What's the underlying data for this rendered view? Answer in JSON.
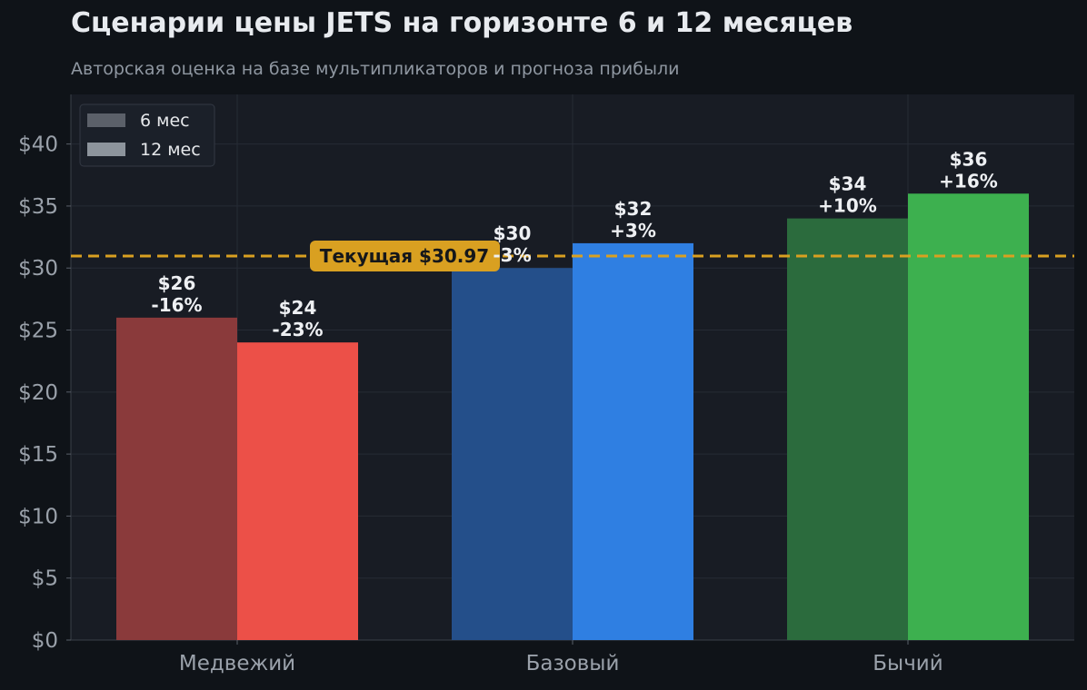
{
  "title": "Сценарии цены JETS на горизонте 6 и 12 месяцев",
  "subtitle": "Авторская оценка на базе мультипликаторов и прогноза прибыли",
  "chart_data": {
    "type": "bar",
    "categories": [
      "Медвежий",
      "Базовый",
      "Бычий"
    ],
    "series": [
      {
        "name": "6 мес",
        "values": [
          26,
          30,
          34
        ],
        "labels": [
          "$26",
          "$30",
          "$34"
        ],
        "changes": [
          "-16%",
          "-3%",
          "+10%"
        ],
        "colors": [
          "#8a3a3b",
          "#244f8a",
          "#2b6b3d"
        ]
      },
      {
        "name": "12 мес",
        "values": [
          24,
          32,
          36
        ],
        "labels": [
          "$24",
          "$32",
          "$36"
        ],
        "changes": [
          "-23%",
          "+3%",
          "+16%"
        ],
        "colors": [
          "#ec5048",
          "#2f7fe2",
          "#3db04f"
        ]
      }
    ],
    "ylim": [
      0,
      44
    ],
    "yticks": [
      0,
      5,
      10,
      15,
      20,
      25,
      30,
      35,
      40
    ],
    "ytick_labels": [
      "$0",
      "$5",
      "$10",
      "$15",
      "$20",
      "$25",
      "$30",
      "$35",
      "$40"
    ],
    "reference_line": {
      "value": 30.97,
      "label": "Текущая $30.97",
      "color": "#d9a021"
    },
    "legend": {
      "position": "top-left",
      "items": [
        {
          "label": "6 мес",
          "color": "#5b6069"
        },
        {
          "label": "12 мес",
          "color": "#8d949c"
        }
      ]
    },
    "grid": true
  }
}
